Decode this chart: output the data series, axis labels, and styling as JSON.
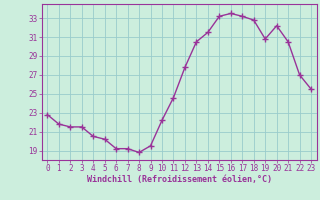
{
  "x": [
    0,
    1,
    2,
    3,
    4,
    5,
    6,
    7,
    8,
    9,
    10,
    11,
    12,
    13,
    14,
    15,
    16,
    17,
    18,
    19,
    20,
    21,
    22,
    23
  ],
  "y": [
    22.8,
    21.8,
    21.5,
    21.5,
    20.5,
    20.2,
    19.2,
    19.2,
    18.8,
    19.5,
    22.2,
    24.6,
    27.8,
    30.5,
    31.5,
    33.2,
    33.5,
    33.2,
    32.8,
    30.8,
    32.2,
    30.5,
    27.0,
    25.5
  ],
  "line_color": "#993399",
  "marker": "+",
  "marker_size": 4,
  "bg_color": "#cceedd",
  "grid_color": "#99cccc",
  "xlabel": "Windchill (Refroidissement éolien,°C)",
  "ylabel": "",
  "ylim": [
    18.0,
    34.5
  ],
  "xlim": [
    -0.5,
    23.5
  ],
  "yticks": [
    19,
    21,
    23,
    25,
    27,
    29,
    31,
    33
  ],
  "xticks": [
    0,
    1,
    2,
    3,
    4,
    5,
    6,
    7,
    8,
    9,
    10,
    11,
    12,
    13,
    14,
    15,
    16,
    17,
    18,
    19,
    20,
    21,
    22,
    23
  ],
  "axis_color": "#993399",
  "font_color": "#993399",
  "tick_fontsize": 5.5,
  "xlabel_fontsize": 6.0,
  "linewidth": 1.0,
  "markeredgewidth": 1.0
}
